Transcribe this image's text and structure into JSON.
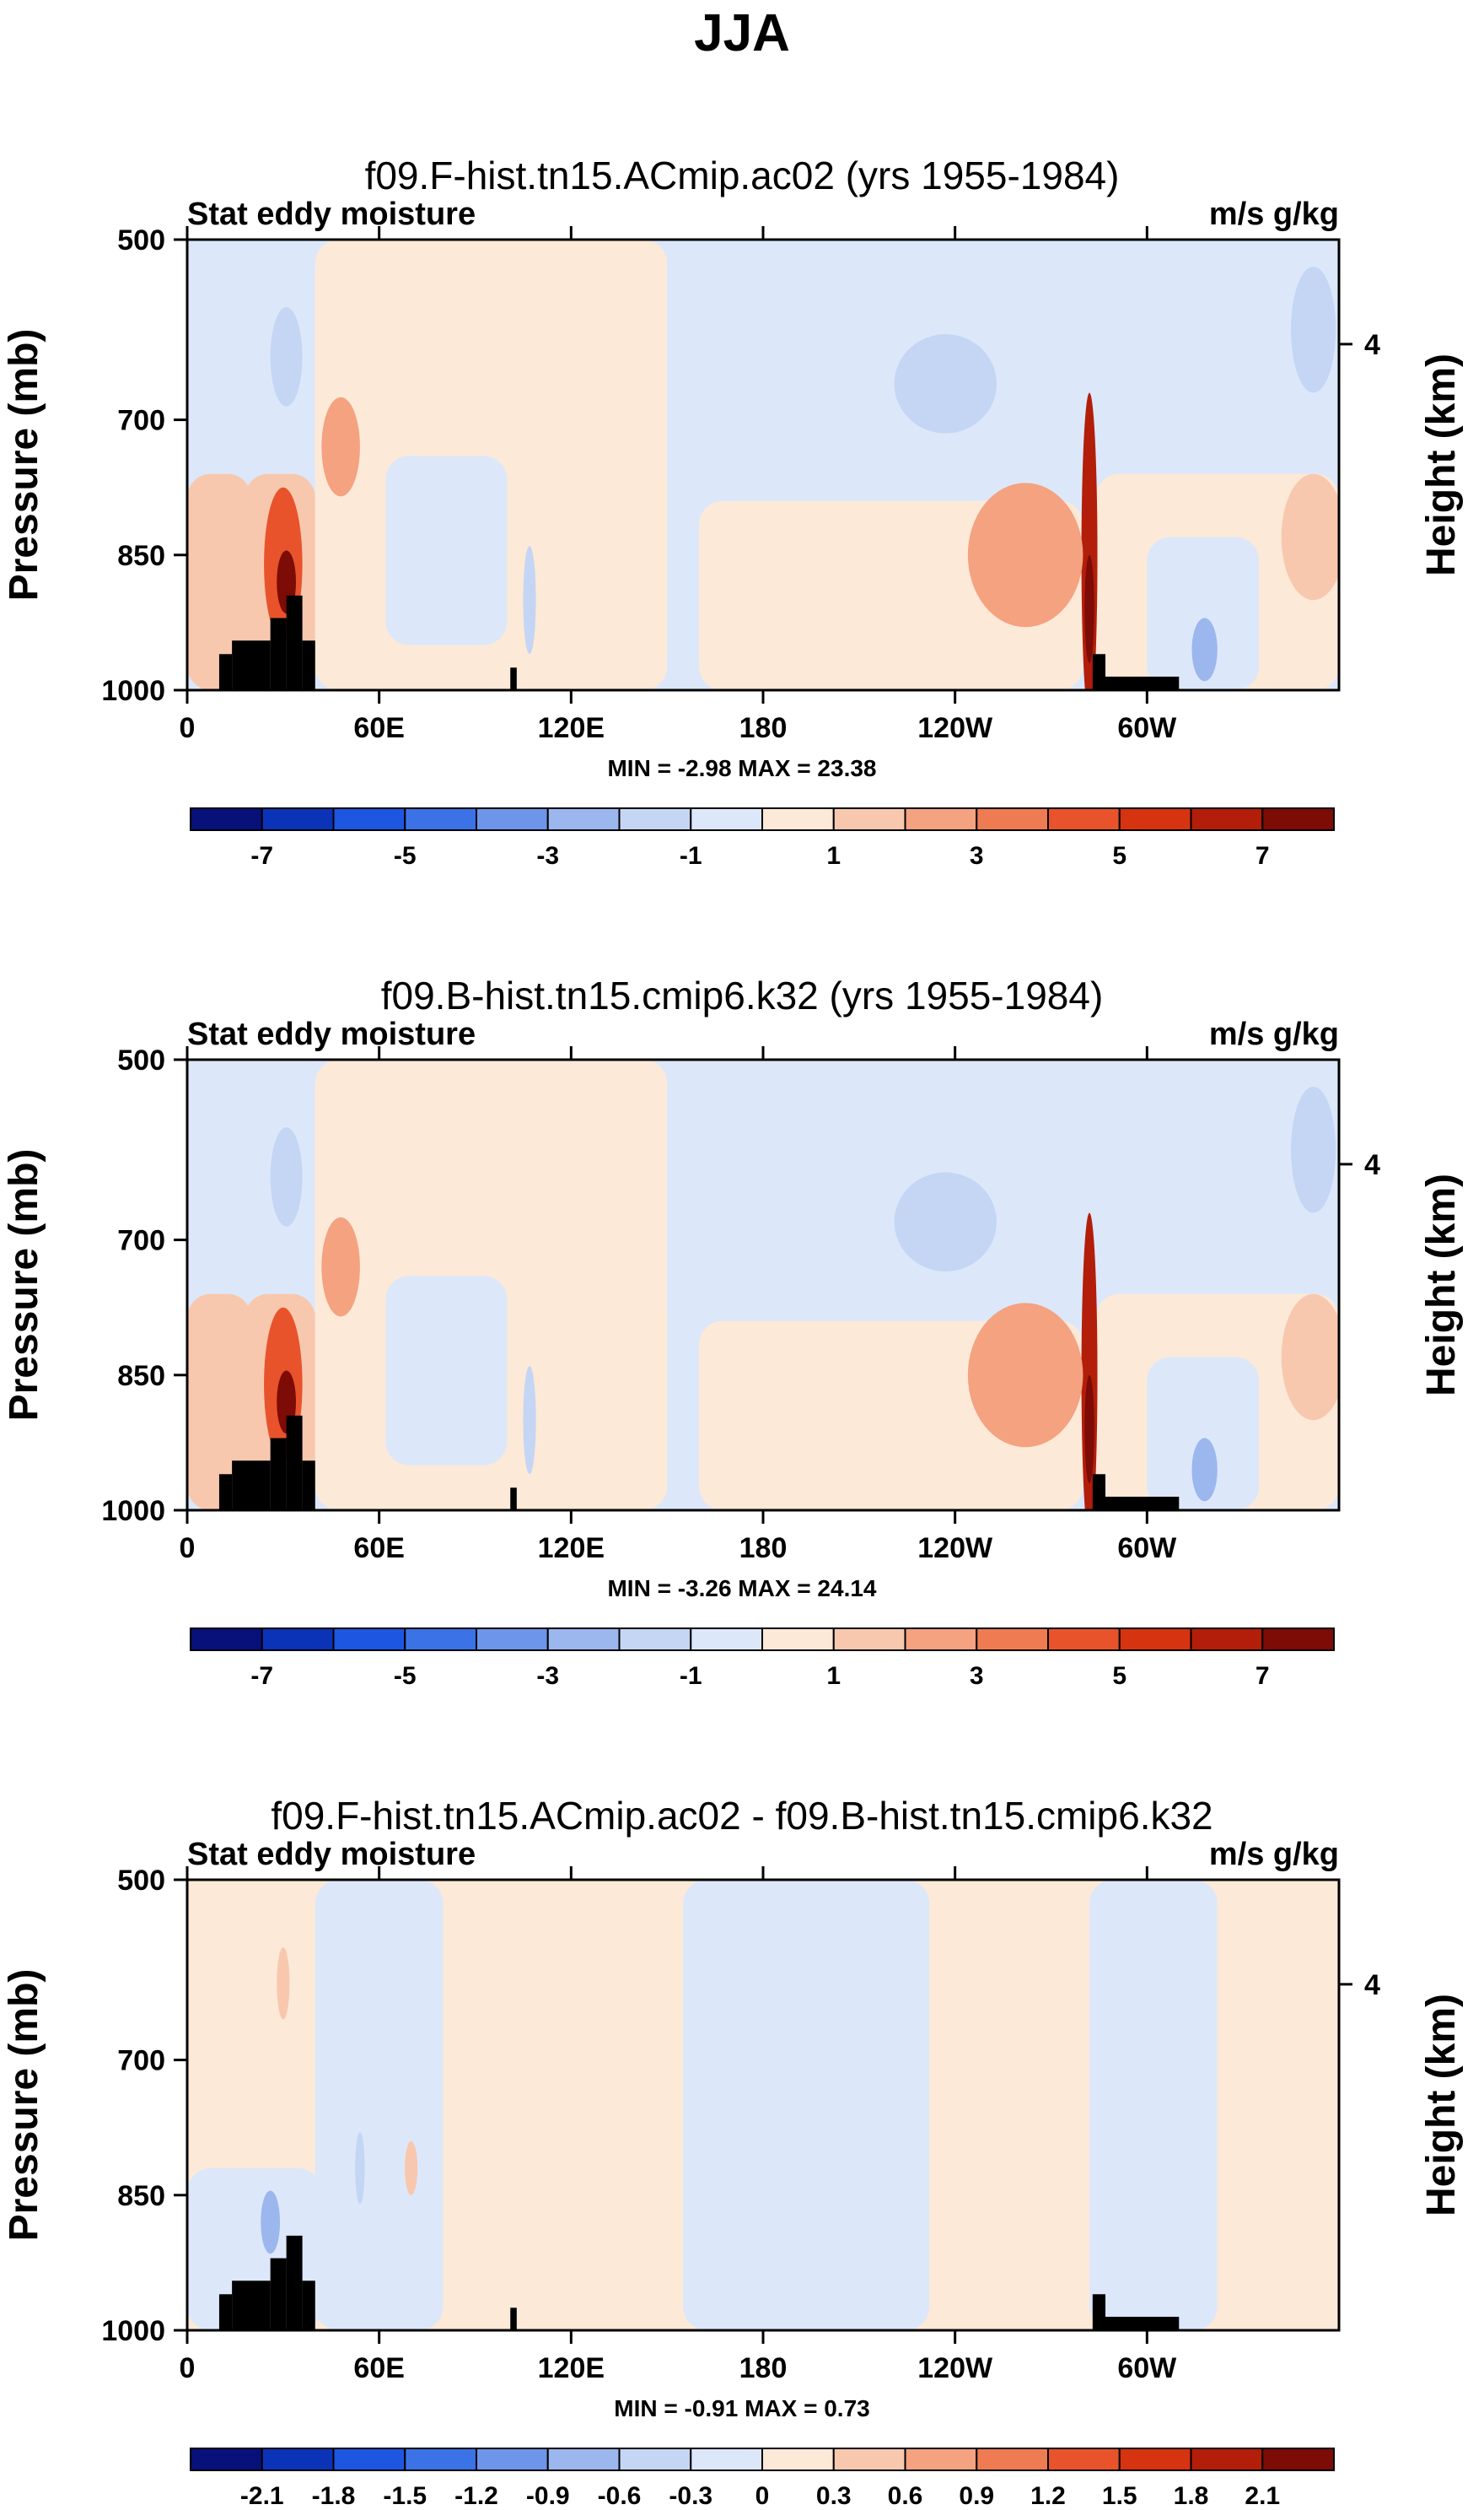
{
  "figure": {
    "title": "JJA"
  },
  "chart_data": [
    {
      "type": "heatmap",
      "title": "f09.F-hist.tn15.ACmip.ac02 (yrs 1955-1984)",
      "left_label": "Stat eddy moisture",
      "right_label": "m/s g/kg",
      "xlabel": "",
      "ylabel": "Pressure (mb)",
      "ylabel_right": "Height (km)",
      "x_ticks": [
        "0",
        "60E",
        "120E",
        "180",
        "120W",
        "60W"
      ],
      "x_tick_lon": [
        0,
        60,
        120,
        180,
        240,
        300
      ],
      "xlim": [
        0,
        360
      ],
      "y_ticks": [
        "500",
        "700",
        "850",
        "1000"
      ],
      "y_tick_values": [
        500,
        700,
        850,
        1000
      ],
      "ylim": [
        1000,
        500
      ],
      "y_right_ticks": [
        "4"
      ],
      "y_right_tick_p": [
        616
      ],
      "stats": "MIN = -2.98   MAX = 23.38",
      "colorbar": {
        "labels": [
          "-7",
          "-5",
          "-3",
          "-1",
          "1",
          "3",
          "5",
          "7"
        ],
        "colors": [
          "#08107a",
          "#0b33b7",
          "#1d56e0",
          "#3b73e6",
          "#6d95ea",
          "#9cb6ee",
          "#c4d6f4",
          "#dce8fa",
          "#fde9d8",
          "#f8c8ae",
          "#f4a280",
          "#ef7b52",
          "#e8532c",
          "#d63310",
          "#b21e0a",
          "#7d0b06"
        ]
      },
      "features": [
        {
          "name": "blue-ridge-20e",
          "level": -1.5,
          "lon": 31,
          "p": 630,
          "rlon": 5,
          "rp": 55
        },
        {
          "name": "red-tower-africa",
          "level": 4.5,
          "lon": 30,
          "p": 860,
          "rlon": 6,
          "rp": 85
        },
        {
          "name": "red-core-africa",
          "level": 7.5,
          "lon": 31,
          "p": 880,
          "rlon": 3,
          "rp": 35
        },
        {
          "name": "red-lobe-50e",
          "level": 2.2,
          "lon": 48,
          "p": 730,
          "rlon": 6,
          "rp": 55
        },
        {
          "name": "blue-blob-150w",
          "level": -1.6,
          "lon": 237,
          "p": 660,
          "rlon": 16,
          "rp": 55
        },
        {
          "name": "red-jet-80w",
          "level": 6.5,
          "lon": 282,
          "p": 850,
          "rlon": 2.5,
          "rp": 180
        },
        {
          "name": "red-jet-80w-core",
          "level": 8.5,
          "lon": 282,
          "p": 910,
          "rlon": 1.5,
          "rp": 60
        },
        {
          "name": "red-lobe-110w",
          "level": 2.0,
          "lon": 262,
          "p": 850,
          "rlon": 18,
          "rp": 80
        },
        {
          "name": "blue-dot-40w",
          "level": -2.8,
          "lon": 318,
          "p": 955,
          "rlon": 4,
          "rp": 35
        },
        {
          "name": "blue-lobe-15w",
          "level": -1.2,
          "lon": 352,
          "p": 600,
          "rlon": 7,
          "rp": 70
        },
        {
          "name": "red-lobe-10w",
          "level": 1.8,
          "lon": 352,
          "p": 830,
          "rlon": 10,
          "rp": 70
        },
        {
          "name": "blue-stripe-100e",
          "level": -1.2,
          "lon": 107,
          "p": 900,
          "rlon": 2,
          "rp": 60
        }
      ]
    },
    {
      "type": "heatmap",
      "title": "f09.B-hist.tn15.cmip6.k32 (yrs 1955-1984)",
      "left_label": "Stat eddy moisture",
      "right_label": "m/s g/kg",
      "xlabel": "",
      "ylabel": "Pressure (mb)",
      "ylabel_right": "Height (km)",
      "x_ticks": [
        "0",
        "60E",
        "120E",
        "180",
        "120W",
        "60W"
      ],
      "x_tick_lon": [
        0,
        60,
        120,
        180,
        240,
        300
      ],
      "xlim": [
        0,
        360
      ],
      "y_ticks": [
        "500",
        "700",
        "850",
        "1000"
      ],
      "y_tick_values": [
        500,
        700,
        850,
        1000
      ],
      "ylim": [
        1000,
        500
      ],
      "y_right_ticks": [
        "4"
      ],
      "y_right_tick_p": [
        616
      ],
      "stats": "MIN = -3.26   MAX = 24.14",
      "colorbar": {
        "labels": [
          "-7",
          "-5",
          "-3",
          "-1",
          "1",
          "3",
          "5",
          "7"
        ],
        "colors": [
          "#08107a",
          "#0b33b7",
          "#1d56e0",
          "#3b73e6",
          "#6d95ea",
          "#9cb6ee",
          "#c4d6f4",
          "#dce8fa",
          "#fde9d8",
          "#f8c8ae",
          "#f4a280",
          "#ef7b52",
          "#e8532c",
          "#d63310",
          "#b21e0a",
          "#7d0b06"
        ]
      },
      "features": [
        {
          "name": "blue-ridge-20e",
          "level": -1.5,
          "lon": 31,
          "p": 630,
          "rlon": 5,
          "rp": 55
        },
        {
          "name": "red-tower-africa",
          "level": 4.5,
          "lon": 30,
          "p": 860,
          "rlon": 6,
          "rp": 85
        },
        {
          "name": "red-core-africa",
          "level": 7.5,
          "lon": 31,
          "p": 880,
          "rlon": 3,
          "rp": 35
        },
        {
          "name": "red-lobe-50e",
          "level": 2.2,
          "lon": 48,
          "p": 730,
          "rlon": 6,
          "rp": 55
        },
        {
          "name": "blue-blob-150w",
          "level": -1.6,
          "lon": 237,
          "p": 680,
          "rlon": 16,
          "rp": 55
        },
        {
          "name": "red-jet-80w",
          "level": 6.5,
          "lon": 282,
          "p": 850,
          "rlon": 2.5,
          "rp": 180
        },
        {
          "name": "red-jet-80w-core",
          "level": 8.5,
          "lon": 282,
          "p": 910,
          "rlon": 1.5,
          "rp": 60
        },
        {
          "name": "red-lobe-110w",
          "level": 2.0,
          "lon": 262,
          "p": 850,
          "rlon": 18,
          "rp": 80
        },
        {
          "name": "blue-dot-40w",
          "level": -2.8,
          "lon": 318,
          "p": 955,
          "rlon": 4,
          "rp": 35
        },
        {
          "name": "blue-lobe-15w",
          "level": -1.2,
          "lon": 352,
          "p": 600,
          "rlon": 7,
          "rp": 70
        },
        {
          "name": "red-lobe-10w",
          "level": 1.8,
          "lon": 352,
          "p": 830,
          "rlon": 10,
          "rp": 70
        },
        {
          "name": "blue-stripe-100e",
          "level": -1.2,
          "lon": 107,
          "p": 900,
          "rlon": 2,
          "rp": 60
        }
      ]
    },
    {
      "type": "heatmap",
      "title": "f09.F-hist.tn15.ACmip.ac02 - f09.B-hist.tn15.cmip6.k32",
      "left_label": "Stat eddy moisture",
      "right_label": "m/s g/kg",
      "xlabel": "",
      "ylabel": "Pressure (mb)",
      "ylabel_right": "Height (km)",
      "x_ticks": [
        "0",
        "60E",
        "120E",
        "180",
        "120W",
        "60W"
      ],
      "x_tick_lon": [
        0,
        60,
        120,
        180,
        240,
        300
      ],
      "xlim": [
        0,
        360
      ],
      "y_ticks": [
        "500",
        "700",
        "850",
        "1000"
      ],
      "y_tick_values": [
        500,
        700,
        850,
        1000
      ],
      "ylim": [
        1000,
        500
      ],
      "y_right_ticks": [
        "4"
      ],
      "y_right_tick_p": [
        616
      ],
      "stats": "MIN = -0.91   MAX =  0.73",
      "colorbar": {
        "labels": [
          "-2.1",
          "-1.8",
          "-1.5",
          "-1.2",
          "-0.9",
          "-0.6",
          "-0.3",
          "0",
          "0.3",
          "0.6",
          "0.9",
          "1.2",
          "1.5",
          "1.8",
          "2.1"
        ],
        "colors": [
          "#08107a",
          "#0b33b7",
          "#1d56e0",
          "#3b73e6",
          "#6d95ea",
          "#9cb6ee",
          "#c4d6f4",
          "#dce8fa",
          "#fde9d8",
          "#f8c8ae",
          "#f4a280",
          "#ef7b52",
          "#e8532c",
          "#d63310",
          "#b21e0a",
          "#7d0b06"
        ]
      },
      "features": [
        {
          "name": "blue-dot-25e",
          "level": -0.65,
          "lon": 26,
          "p": 880,
          "rlon": 3,
          "rp": 35
        },
        {
          "name": "red-dot-30e",
          "level": 0.35,
          "lon": 30,
          "p": 615,
          "rlon": 2,
          "rp": 40
        },
        {
          "name": "blue-stripe-55e",
          "level": -0.4,
          "lon": 54,
          "p": 820,
          "rlon": 1.5,
          "rp": 40
        },
        {
          "name": "red-stripe-75e",
          "level": 0.35,
          "lon": 70,
          "p": 820,
          "rlon": 2,
          "rp": 30
        }
      ]
    }
  ]
}
